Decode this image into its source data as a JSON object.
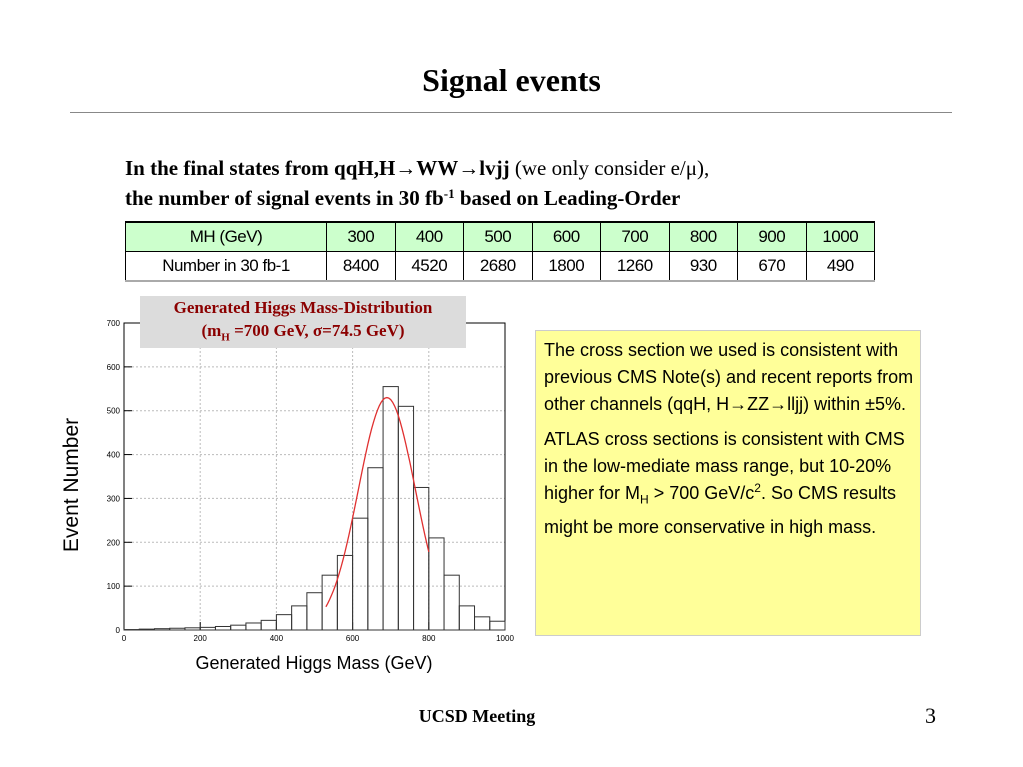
{
  "slide": {
    "title": "Signal events",
    "footer": "UCSD Meeting",
    "page_number": "3"
  },
  "intro": {
    "line1_a": "In the final states from qqH,H",
    "arrow": "→",
    "line1_b": "WW",
    "line1_c": "lvjj",
    "line1_d": " (we only consider e/μ),",
    "line2_a": "the number of signal events in 30 fb",
    "line2_sup": "-1",
    "line2_b": " based on Leading-Order"
  },
  "table": {
    "header_label": "MH (GeV)",
    "row_label": "Number in 30 fb-1",
    "masses": [
      "300",
      "400",
      "500",
      "600",
      "700",
      "800",
      "900",
      "1000"
    ],
    "events": [
      "8400",
      "4520",
      "2680",
      "1800",
      "1260",
      "930",
      "670",
      "490"
    ]
  },
  "plot_caption": {
    "line1": "Generated Higgs Mass-Distribution",
    "line2_a": "(m",
    "line2_sub": "H",
    "line2_b": " =700 GeV, σ=74.5 GeV)"
  },
  "note": {
    "p1_a": "The cross section we used is consistent with previous CMS Note(s) and recent reports from other channels (qqH,  H",
    "p1_arrow1": "→",
    "p1_b": "ZZ",
    "p1_arrow2": "→",
    "p1_c": "lljj) within ±5%.",
    "p2_a": "ATLAS cross sections is consistent with CMS in the low-mediate mass range, but 10-20% higher for M",
    "p2_sub": "H",
    "p2_b": " > 700 GeV/c",
    "p2_sup": "2",
    "p2_c": ". So CMS results might be more conservative in high mass."
  },
  "chart_data": {
    "type": "bar",
    "xlabel": "Generated Higgs Mass (GeV)",
    "ylabel": "Event Number",
    "xlim": [
      0,
      1000
    ],
    "ylim": [
      0,
      700
    ],
    "x_ticks": [
      "0",
      "200",
      "400",
      "600",
      "800",
      "1000"
    ],
    "y_ticks": [
      "0",
      "100",
      "200",
      "300",
      "400",
      "500",
      "600",
      "700"
    ],
    "bin_edges": [
      0,
      40,
      80,
      120,
      160,
      200,
      240,
      280,
      320,
      360,
      400,
      440,
      480,
      520,
      560,
      600,
      640,
      680,
      720,
      760,
      800,
      840,
      880,
      920,
      960,
      1000
    ],
    "bin_counts": [
      1,
      2,
      3,
      4,
      5,
      6,
      8,
      11,
      16,
      22,
      35,
      55,
      85,
      125,
      170,
      255,
      370,
      555,
      510,
      325,
      210,
      125,
      55,
      30,
      20
    ],
    "fit_curve": {
      "type": "gaussian",
      "mean": 690,
      "sigma": 74.5,
      "amplitude": 530,
      "range": [
        530,
        800
      ]
    },
    "grid": true
  }
}
